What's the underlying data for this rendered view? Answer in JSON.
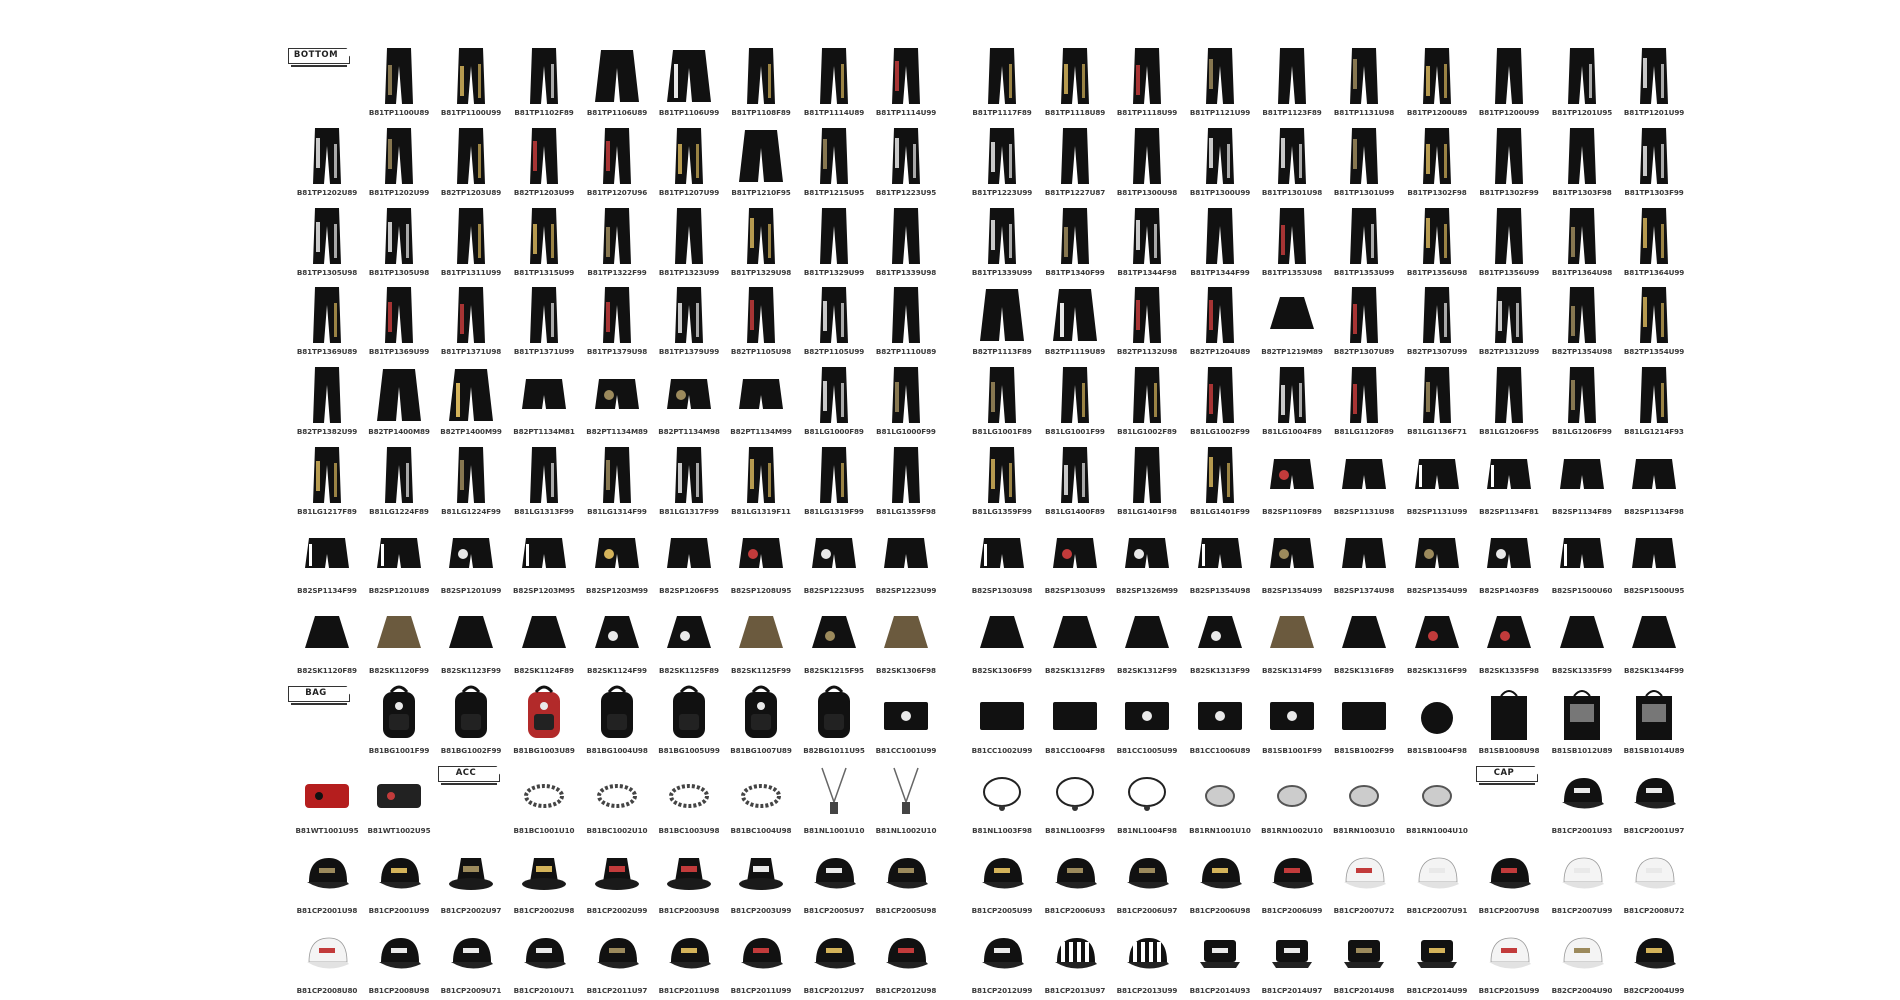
{
  "sections": [
    {
      "key": "bottom",
      "label": "BOTTOM"
    },
    {
      "key": "bag",
      "label": "BAG"
    },
    {
      "key": "acc",
      "label": "ACC"
    },
    {
      "key": "cap",
      "label": "CAP"
    }
  ],
  "rows": [
    {
      "items": [
        {
          "kind": "section",
          "section": "bottom"
        },
        {
          "code": "B81TP1100U89",
          "kind": "pants"
        },
        {
          "code": "B81TP1100U99",
          "kind": "pants"
        },
        {
          "code": "B81TP1102F89",
          "kind": "pants"
        },
        {
          "code": "B81TP1106U89",
          "kind": "wide"
        },
        {
          "code": "B81TP1106U99",
          "kind": "wide"
        },
        {
          "code": "B81TP1108F89",
          "kind": "pants"
        },
        {
          "code": "B81TP1114U89",
          "kind": "pants"
        },
        {
          "code": "B81TP1114U99",
          "kind": "pants"
        },
        {
          "code": "B81TP1117F89",
          "kind": "pants"
        },
        {
          "code": "B81TP1118U89",
          "kind": "pants"
        },
        {
          "code": "B81TP1118U99",
          "kind": "pants"
        },
        {
          "code": "B81TP1121U99",
          "kind": "pants"
        },
        {
          "code": "B81TP1123F89",
          "kind": "pants"
        },
        {
          "code": "B81TP1131U98",
          "kind": "pants"
        },
        {
          "code": "B81TP1200U89",
          "kind": "pants"
        },
        {
          "code": "B81TP1200U99",
          "kind": "pants"
        },
        {
          "code": "B81TP1201U95",
          "kind": "pants"
        },
        {
          "code": "B81TP1201U99",
          "kind": "pants"
        }
      ]
    },
    {
      "items": [
        {
          "code": "B81TP1202U89",
          "kind": "pants"
        },
        {
          "code": "B81TP1202U99",
          "kind": "pants"
        },
        {
          "code": "B82TP1203U89",
          "kind": "pants"
        },
        {
          "code": "B82TP1203U99",
          "kind": "pants"
        },
        {
          "code": "B81TP1207U96",
          "kind": "pants"
        },
        {
          "code": "B81TP1207U99",
          "kind": "pants"
        },
        {
          "code": "B81TP1210F95",
          "kind": "wide"
        },
        {
          "code": "B81TP1215U95",
          "kind": "pants"
        },
        {
          "code": "B81TP1223U95",
          "kind": "pants"
        },
        {
          "code": "B81TP1223U99",
          "kind": "pants"
        },
        {
          "code": "B81TP1227U87",
          "kind": "pants"
        },
        {
          "code": "B81TP1300U98",
          "kind": "pants"
        },
        {
          "code": "B81TP1300U99",
          "kind": "pants"
        },
        {
          "code": "B81TP1301U98",
          "kind": "pants"
        },
        {
          "code": "B81TP1301U99",
          "kind": "pants"
        },
        {
          "code": "B81TP1302F98",
          "kind": "pants"
        },
        {
          "code": "B81TP1302F99",
          "kind": "pants"
        },
        {
          "code": "B81TP1303F98",
          "kind": "pants"
        },
        {
          "code": "B81TP1303F99",
          "kind": "pants"
        }
      ]
    },
    {
      "items": [
        {
          "code": "B81TP1305U98",
          "kind": "pants"
        },
        {
          "code": "B81TP1305U98",
          "kind": "pants"
        },
        {
          "code": "B81TP1311U99",
          "kind": "pants"
        },
        {
          "code": "B81TP1315U99",
          "kind": "pants"
        },
        {
          "code": "B81TP1322F99",
          "kind": "pants"
        },
        {
          "code": "B81TP1323U99",
          "kind": "pants"
        },
        {
          "code": "B81TP1329U98",
          "kind": "pants"
        },
        {
          "code": "B81TP1329U99",
          "kind": "pants"
        },
        {
          "code": "B81TP1339U98",
          "kind": "pants"
        },
        {
          "code": "B81TP1339U99",
          "kind": "pants"
        },
        {
          "code": "B81TP1340F99",
          "kind": "pants"
        },
        {
          "code": "B81TP1344F98",
          "kind": "pants"
        },
        {
          "code": "B81TP1344F99",
          "kind": "pants"
        },
        {
          "code": "B81TP1353U98",
          "kind": "pants"
        },
        {
          "code": "B81TP1353U99",
          "kind": "pants"
        },
        {
          "code": "B81TP1356U98",
          "kind": "pants"
        },
        {
          "code": "B81TP1356U99",
          "kind": "pants"
        },
        {
          "code": "B81TP1364U98",
          "kind": "pants"
        },
        {
          "code": "B81TP1364U99",
          "kind": "pants"
        }
      ]
    },
    {
      "items": [
        {
          "code": "B81TP1369U89",
          "kind": "pants"
        },
        {
          "code": "B81TP1369U99",
          "kind": "pants"
        },
        {
          "code": "B81TP1371U98",
          "kind": "pants"
        },
        {
          "code": "B81TP1371U99",
          "kind": "pants"
        },
        {
          "code": "B81TP1379U98",
          "kind": "pants"
        },
        {
          "code": "B81TP1379U99",
          "kind": "pants"
        },
        {
          "code": "B82TP1105U98",
          "kind": "pants"
        },
        {
          "code": "B82TP1105U99",
          "kind": "pants"
        },
        {
          "code": "B82TP1110U89",
          "kind": "pants"
        },
        {
          "code": "B82TP1113F89",
          "kind": "wide"
        },
        {
          "code": "B82TP1119U89",
          "kind": "wide"
        },
        {
          "code": "B82TP1132U98",
          "kind": "pants"
        },
        {
          "code": "B82TP1204U89",
          "kind": "pants"
        },
        {
          "code": "B82TP1219M89",
          "kind": "skirt"
        },
        {
          "code": "B82TP1307U89",
          "kind": "pants"
        },
        {
          "code": "B82TP1307U99",
          "kind": "pants"
        },
        {
          "code": "B82TP1312U99",
          "kind": "pants"
        },
        {
          "code": "B82TP1354U98",
          "kind": "pants"
        },
        {
          "code": "B82TP1354U99",
          "kind": "pants"
        }
      ]
    },
    {
      "items": [
        {
          "code": "B82TP1382U99",
          "kind": "pants"
        },
        {
          "code": "B82TP1400M89",
          "kind": "wide"
        },
        {
          "code": "B82TP1400M99",
          "kind": "wide"
        },
        {
          "code": "B82PT1134M81",
          "kind": "shorts"
        },
        {
          "code": "B82PT1134M89",
          "kind": "shorts"
        },
        {
          "code": "B82PT1134M98",
          "kind": "shorts"
        },
        {
          "code": "B82PT1134M99",
          "kind": "shorts"
        },
        {
          "code": "B81LG1000F89",
          "kind": "pants"
        },
        {
          "code": "B81LG1000F99",
          "kind": "pants"
        },
        {
          "code": "B81LG1001F89",
          "kind": "pants"
        },
        {
          "code": "B81LG1001F99",
          "kind": "pants"
        },
        {
          "code": "B81LG1002F89",
          "kind": "pants"
        },
        {
          "code": "B81LG1002F99",
          "kind": "pants"
        },
        {
          "code": "B81LG1004F89",
          "kind": "pants"
        },
        {
          "code": "B81LG1120F89",
          "kind": "pants"
        },
        {
          "code": "B81LG1136F71",
          "kind": "pants"
        },
        {
          "code": "B81LG1206F95",
          "kind": "pants"
        },
        {
          "code": "B81LG1206F99",
          "kind": "pants"
        },
        {
          "code": "B81LG1214F93",
          "kind": "pants"
        }
      ]
    },
    {
      "items": [
        {
          "code": "B81LG1217F89",
          "kind": "pants"
        },
        {
          "code": "B81LG1224F89",
          "kind": "pants"
        },
        {
          "code": "B81LG1224F99",
          "kind": "pants"
        },
        {
          "code": "B81LG1313F99",
          "kind": "pants"
        },
        {
          "code": "B81LG1314F99",
          "kind": "pants"
        },
        {
          "code": "B81LG1317F99",
          "kind": "pants"
        },
        {
          "code": "B81LG1319F11",
          "kind": "pants"
        },
        {
          "code": "B81LG1319F99",
          "kind": "pants"
        },
        {
          "code": "B81LG1359F98",
          "kind": "pants"
        },
        {
          "code": "B81LG1359F99",
          "kind": "pants"
        },
        {
          "code": "B81LG1400F89",
          "kind": "pants"
        },
        {
          "code": "B81LG1401F98",
          "kind": "pants"
        },
        {
          "code": "B81LG1401F99",
          "kind": "pants"
        },
        {
          "code": "B82SP1109F89",
          "kind": "shorts"
        },
        {
          "code": "B82SP1131U98",
          "kind": "shorts"
        },
        {
          "code": "B82SP1131U99",
          "kind": "shorts"
        },
        {
          "code": "B82SP1134F81",
          "kind": "shorts"
        },
        {
          "code": "B82SP1134F89",
          "kind": "shorts"
        },
        {
          "code": "B82SP1134F98",
          "kind": "shorts"
        }
      ]
    },
    {
      "items": [
        {
          "code": "B82SP1134F99",
          "kind": "shorts"
        },
        {
          "code": "B82SP1201U89",
          "kind": "shorts"
        },
        {
          "code": "B82SP1201U99",
          "kind": "shorts"
        },
        {
          "code": "B82SP1203M95",
          "kind": "shorts"
        },
        {
          "code": "B82SP1203M99",
          "kind": "shorts"
        },
        {
          "code": "B82SP1206F95",
          "kind": "shorts"
        },
        {
          "code": "B82SP1208U95",
          "kind": "shorts"
        },
        {
          "code": "B82SP1223U95",
          "kind": "shorts"
        },
        {
          "code": "B82SP1223U99",
          "kind": "shorts"
        },
        {
          "code": "B82SP1303U98",
          "kind": "shorts"
        },
        {
          "code": "B82SP1303U99",
          "kind": "shorts"
        },
        {
          "code": "B82SP1326M99",
          "kind": "shorts"
        },
        {
          "code": "B82SP1354U98",
          "kind": "shorts"
        },
        {
          "code": "B82SP1354U99",
          "kind": "shorts"
        },
        {
          "code": "B82SP1374U98",
          "kind": "shorts"
        },
        {
          "code": "B82SP1354U99",
          "kind": "shorts"
        },
        {
          "code": "B82SP1403F89",
          "kind": "shorts"
        },
        {
          "code": "B82SP1500U60",
          "kind": "shorts"
        },
        {
          "code": "B82SP1500U95",
          "kind": "shorts"
        }
      ]
    },
    {
      "items": [
        {
          "code": "B82SK1120F89",
          "kind": "skirt"
        },
        {
          "code": "B82SK1120F99",
          "kind": "skirt"
        },
        {
          "code": "B82SK1123F99",
          "kind": "skirt"
        },
        {
          "code": "B82SK1124F89",
          "kind": "skirt"
        },
        {
          "code": "B82SK1124F99",
          "kind": "skirt"
        },
        {
          "code": "B82SK1125F89",
          "kind": "skirt"
        },
        {
          "code": "B82SK1125F99",
          "kind": "skirt"
        },
        {
          "code": "B82SK1215F95",
          "kind": "skirt"
        },
        {
          "code": "B82SK1306F98",
          "kind": "skirt"
        },
        {
          "code": "B82SK1306F99",
          "kind": "skirt"
        },
        {
          "code": "B82SK1312F89",
          "kind": "skirt"
        },
        {
          "code": "B82SK1312F99",
          "kind": "skirt"
        },
        {
          "code": "B82SK1313F99",
          "kind": "skirt"
        },
        {
          "code": "B82SK1314F99",
          "kind": "skirt"
        },
        {
          "code": "B82SK1316F89",
          "kind": "skirt"
        },
        {
          "code": "B82SK1316F99",
          "kind": "skirt"
        },
        {
          "code": "B82SK1335F98",
          "kind": "skirt"
        },
        {
          "code": "B82SK1335F99",
          "kind": "skirt"
        },
        {
          "code": "B82SK1344F99",
          "kind": "skirt"
        }
      ]
    },
    {
      "items": [
        {
          "kind": "section",
          "section": "bag"
        },
        {
          "code": "B81BG1001F99",
          "kind": "backpack"
        },
        {
          "code": "B81BG1002F99",
          "kind": "backpack"
        },
        {
          "code": "B81BG1003U89",
          "kind": "backpack"
        },
        {
          "code": "B81BG1004U98",
          "kind": "backpack"
        },
        {
          "code": "B81BG1005U99",
          "kind": "backpack"
        },
        {
          "code": "B81BG1007U89",
          "kind": "backpack"
        },
        {
          "code": "B82BG1011U95",
          "kind": "backpack"
        },
        {
          "code": "B81CC1001U99",
          "kind": "clutch"
        },
        {
          "code": "B81CC1002U99",
          "kind": "clutch"
        },
        {
          "code": "B81CC1004F98",
          "kind": "clutch"
        },
        {
          "code": "B81CC1005U99",
          "kind": "clutch"
        },
        {
          "code": "B81CC1006U89",
          "kind": "clutch"
        },
        {
          "code": "B81SB1001F99",
          "kind": "clutch"
        },
        {
          "code": "B81SB1002F99",
          "kind": "clutch"
        },
        {
          "code": "B81SB1004F98",
          "kind": "round"
        },
        {
          "code": "B81SB1008U98",
          "kind": "tote"
        },
        {
          "code": "B81SB1012U89",
          "kind": "tote"
        },
        {
          "code": "B81SB1014U89",
          "kind": "tote"
        }
      ]
    },
    {
      "items": [
        {
          "code": "B81WT1001U95",
          "kind": "wallet"
        },
        {
          "code": "B81WT1002U95",
          "kind": "wallet"
        },
        {
          "kind": "section",
          "section": "acc"
        },
        {
          "code": "B81BC1001U10",
          "kind": "bracelet"
        },
        {
          "code": "B81BC1002U10",
          "kind": "bracelet"
        },
        {
          "code": "B81BC1003U98",
          "kind": "bracelet"
        },
        {
          "code": "B81BC1004U98",
          "kind": "bracelet"
        },
        {
          "code": "B81NL1001U10",
          "kind": "necklace"
        },
        {
          "code": "B81NL1002U10",
          "kind": "necklace"
        },
        {
          "code": "B81NL1003F98",
          "kind": "choker"
        },
        {
          "code": "B81NL1003F99",
          "kind": "choker"
        },
        {
          "code": "B81NL1004F98",
          "kind": "choker"
        },
        {
          "code": "B81RN1001U10",
          "kind": "ring"
        },
        {
          "code": "B81RN1002U10",
          "kind": "ring"
        },
        {
          "code": "B81RN1003U10",
          "kind": "ring"
        },
        {
          "code": "B81RN1004U10",
          "kind": "ring"
        },
        {
          "kind": "section",
          "section": "cap"
        },
        {
          "code": "B81CP2001U93",
          "kind": "cap"
        },
        {
          "code": "B81CP2001U97",
          "kind": "cap"
        }
      ]
    },
    {
      "items": [
        {
          "code": "B81CP2001U98",
          "kind": "cap"
        },
        {
          "code": "B81CP2001U99",
          "kind": "cap"
        },
        {
          "code": "B81CP2002U97",
          "kind": "bucket"
        },
        {
          "code": "B81CP2002U98",
          "kind": "bucket"
        },
        {
          "code": "B81CP2002U99",
          "kind": "bucket"
        },
        {
          "code": "B81CP2003U98",
          "kind": "bucket"
        },
        {
          "code": "B81CP2003U99",
          "kind": "bucket"
        },
        {
          "code": "B81CP2005U97",
          "kind": "cap"
        },
        {
          "code": "B81CP2005U98",
          "kind": "cap"
        },
        {
          "code": "B81CP2005U99",
          "kind": "cap"
        },
        {
          "code": "B81CP2006U93",
          "kind": "cap"
        },
        {
          "code": "B81CP2006U97",
          "kind": "cap"
        },
        {
          "code": "B81CP2006U98",
          "kind": "cap"
        },
        {
          "code": "B81CP2006U99",
          "kind": "cap"
        },
        {
          "code": "B81CP2007U72",
          "kind": "capwhite"
        },
        {
          "code": "B81CP2007U91",
          "kind": "capwhite"
        },
        {
          "code": "B81CP2007U98",
          "kind": "cap"
        },
        {
          "code": "B81CP2007U99",
          "kind": "capwhite"
        },
        {
          "code": "B81CP2008U72",
          "kind": "capwhite"
        }
      ]
    },
    {
      "items": [
        {
          "code": "B81CP2008U80",
          "kind": "capwhite"
        },
        {
          "code": "B81CP2008U98",
          "kind": "cap"
        },
        {
          "code": "B81CP2009U71",
          "kind": "cap"
        },
        {
          "code": "B81CP2010U71",
          "kind": "cap"
        },
        {
          "code": "B81CP2011U97",
          "kind": "cap"
        },
        {
          "code": "B81CP2011U98",
          "kind": "cap"
        },
        {
          "code": "B81CP2011U99",
          "kind": "cap"
        },
        {
          "code": "B81CP2012U97",
          "kind": "cap"
        },
        {
          "code": "B81CP2012U98",
          "kind": "cap"
        },
        {
          "code": "B81CP2012U99",
          "kind": "cap"
        },
        {
          "code": "B81CP2013U97",
          "kind": "capstripe"
        },
        {
          "code": "B81CP2013U99",
          "kind": "capstripe"
        },
        {
          "code": "B81CP2014U93",
          "kind": "military"
        },
        {
          "code": "B81CP2014U97",
          "kind": "military"
        },
        {
          "code": "B81CP2014U98",
          "kind": "military"
        },
        {
          "code": "B81CP2014U99",
          "kind": "military"
        },
        {
          "code": "B81CP2015U99",
          "kind": "capwhite"
        },
        {
          "code": "B82CP2004U90",
          "kind": "capwhite"
        },
        {
          "code": "B82CP2004U99",
          "kind": "cap"
        }
      ]
    }
  ]
}
